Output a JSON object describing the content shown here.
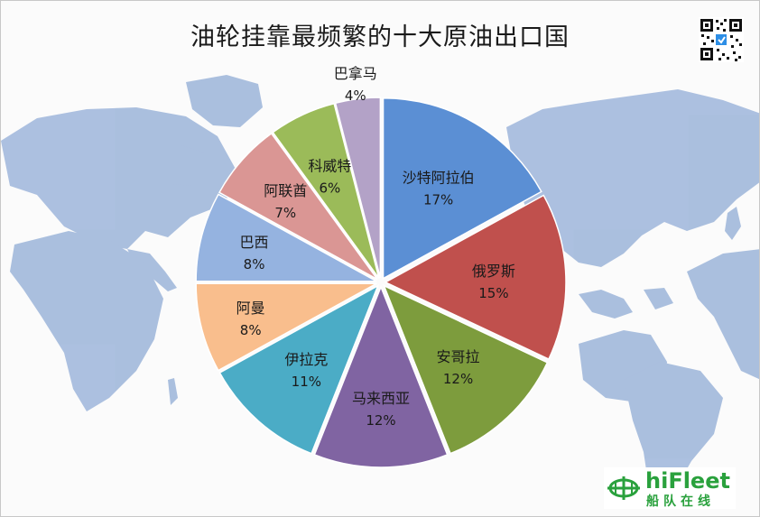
{
  "chart_data": {
    "type": "pie",
    "title": "油轮挂靠最频繁的十大原油出口国",
    "slices": [
      {
        "name": "沙特阿拉伯",
        "value": 17,
        "label": "17%",
        "color": "#5b8fd4"
      },
      {
        "name": "俄罗斯",
        "value": 15,
        "label": "15%",
        "color": "#c0504d"
      },
      {
        "name": "安哥拉",
        "value": 12,
        "label": "12%",
        "color": "#7d9c3d"
      },
      {
        "name": "马来西亚",
        "value": 12,
        "label": "12%",
        "color": "#8064a2"
      },
      {
        "name": "伊拉克",
        "value": 11,
        "label": "11%",
        "color": "#4bacc6"
      },
      {
        "name": "阿曼",
        "value": 8,
        "label": "8%",
        "color": "#f9be8d"
      },
      {
        "name": "巴西",
        "value": 8,
        "label": "8%",
        "color": "#95b3e0"
      },
      {
        "name": "阿联酋",
        "value": 7,
        "label": "7%",
        "color": "#da9694"
      },
      {
        "name": "科威特",
        "value": 6,
        "label": "6%",
        "color": "#9bbb59"
      },
      {
        "name": "巴拿马",
        "value": 4,
        "label": "4%",
        "color": "#b3a2c7"
      }
    ]
  },
  "logo": {
    "brand": "hiFleet",
    "subtitle": "船队在线",
    "color": "#2aa13d"
  },
  "qr_code": {
    "icon": "qr-code-icon"
  },
  "background": {
    "icon": "world-map-icon",
    "color": "#9bb3d6"
  }
}
